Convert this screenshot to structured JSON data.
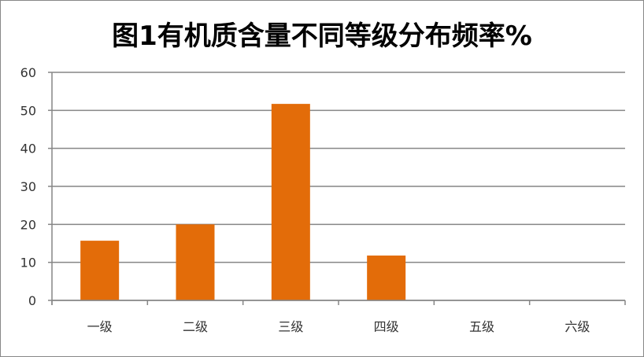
{
  "chart_data": {
    "type": "bar",
    "title": "图1有机质含量不同等级分布频率%",
    "categories": [
      "一级",
      "二级",
      "三级",
      "四级",
      "五级",
      "六级"
    ],
    "values": [
      15.7,
      20.0,
      51.7,
      11.8,
      0,
      0
    ],
    "xlabel": "",
    "ylabel": "",
    "ylim": [
      0,
      60
    ],
    "yticks": [
      0,
      10,
      20,
      30,
      40,
      50,
      60
    ],
    "grid": true,
    "legend": "none",
    "bar_color": "#E36C09"
  }
}
